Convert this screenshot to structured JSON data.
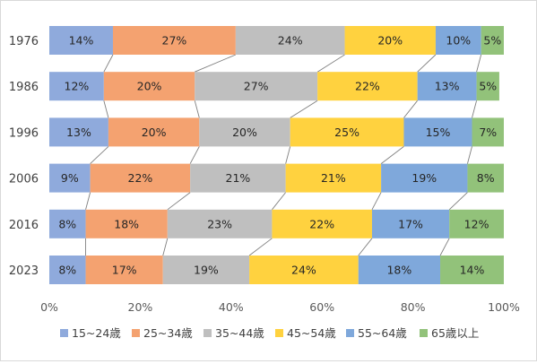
{
  "chart_data": {
    "type": "bar",
    "orientation": "horizontal",
    "stacked": "percent",
    "categories": [
      "1976",
      "1986",
      "1996",
      "2006",
      "2016",
      "2023"
    ],
    "series": [
      {
        "name": "15~24歳",
        "color": "#8faadc",
        "values": [
          14,
          12,
          13,
          9,
          8,
          8
        ]
      },
      {
        "name": "25~34歳",
        "color": "#f4a270",
        "values": [
          27,
          20,
          20,
          22,
          18,
          17
        ]
      },
      {
        "name": "35~44歳",
        "color": "#bfbfbf",
        "values": [
          24,
          27,
          20,
          21,
          23,
          19
        ]
      },
      {
        "name": "45~54歳",
        "color": "#ffd23f",
        "values": [
          20,
          22,
          25,
          21,
          22,
          24
        ]
      },
      {
        "name": "55~64歳",
        "color": "#7fa8db",
        "values": [
          10,
          13,
          15,
          19,
          17,
          18
        ]
      },
      {
        "name": "65歳以上",
        "color": "#92c27a",
        "values": [
          5,
          5,
          7,
          8,
          12,
          14
        ]
      }
    ],
    "data_label_suffix": "%",
    "x_ticks": [
      "0%",
      "20%",
      "40%",
      "60%",
      "80%",
      "100%"
    ],
    "xlim": [
      0,
      100
    ],
    "series_lines": true,
    "grid": false,
    "legend_position": "bottom",
    "title": "",
    "xlabel": "",
    "ylabel": ""
  }
}
